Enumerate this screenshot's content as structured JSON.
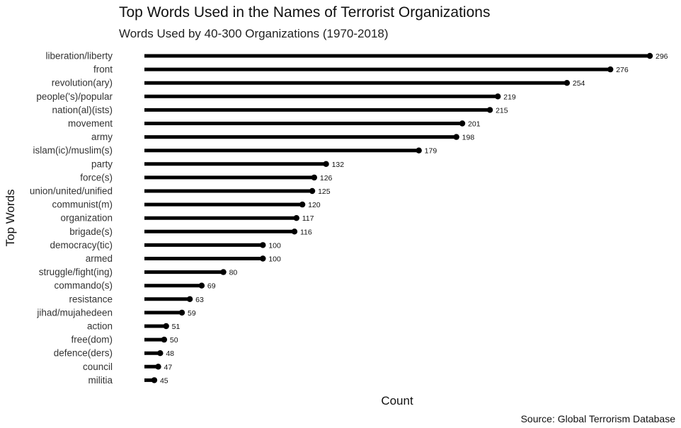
{
  "chart_data": {
    "type": "bar",
    "title": "Top Words Used in the Names of Terrorist Organizations",
    "subtitle": "Words Used by 40-300 Organizations (1970-2018)",
    "xlabel": "Count",
    "ylabel": "Top Words",
    "caption": "Source: Global Terrorism Database",
    "orientation": "horizontal-lollipop",
    "xlim": [
      40,
      296
    ],
    "grid": false,
    "bar_color": "#000000",
    "categories": [
      "liberation/liberty",
      "front",
      "revolution(ary)",
      "people('s)/popular",
      "nation(al)(ists)",
      "movement",
      "army",
      "islam(ic)/muslim(s)",
      "party",
      "force(s)",
      "union/united/unified",
      "communist(m)",
      "organization",
      "brigade(s)",
      "democracy(tic)",
      "armed",
      "struggle/fight(ing)",
      "commando(s)",
      "resistance",
      "jihad/mujahedeen",
      "action",
      "free(dom)",
      "defence(ders)",
      "council",
      "militia"
    ],
    "values": [
      296,
      276,
      254,
      219,
      215,
      201,
      198,
      179,
      132,
      126,
      125,
      120,
      117,
      116,
      100,
      100,
      80,
      69,
      63,
      59,
      51,
      50,
      48,
      47,
      45
    ]
  }
}
